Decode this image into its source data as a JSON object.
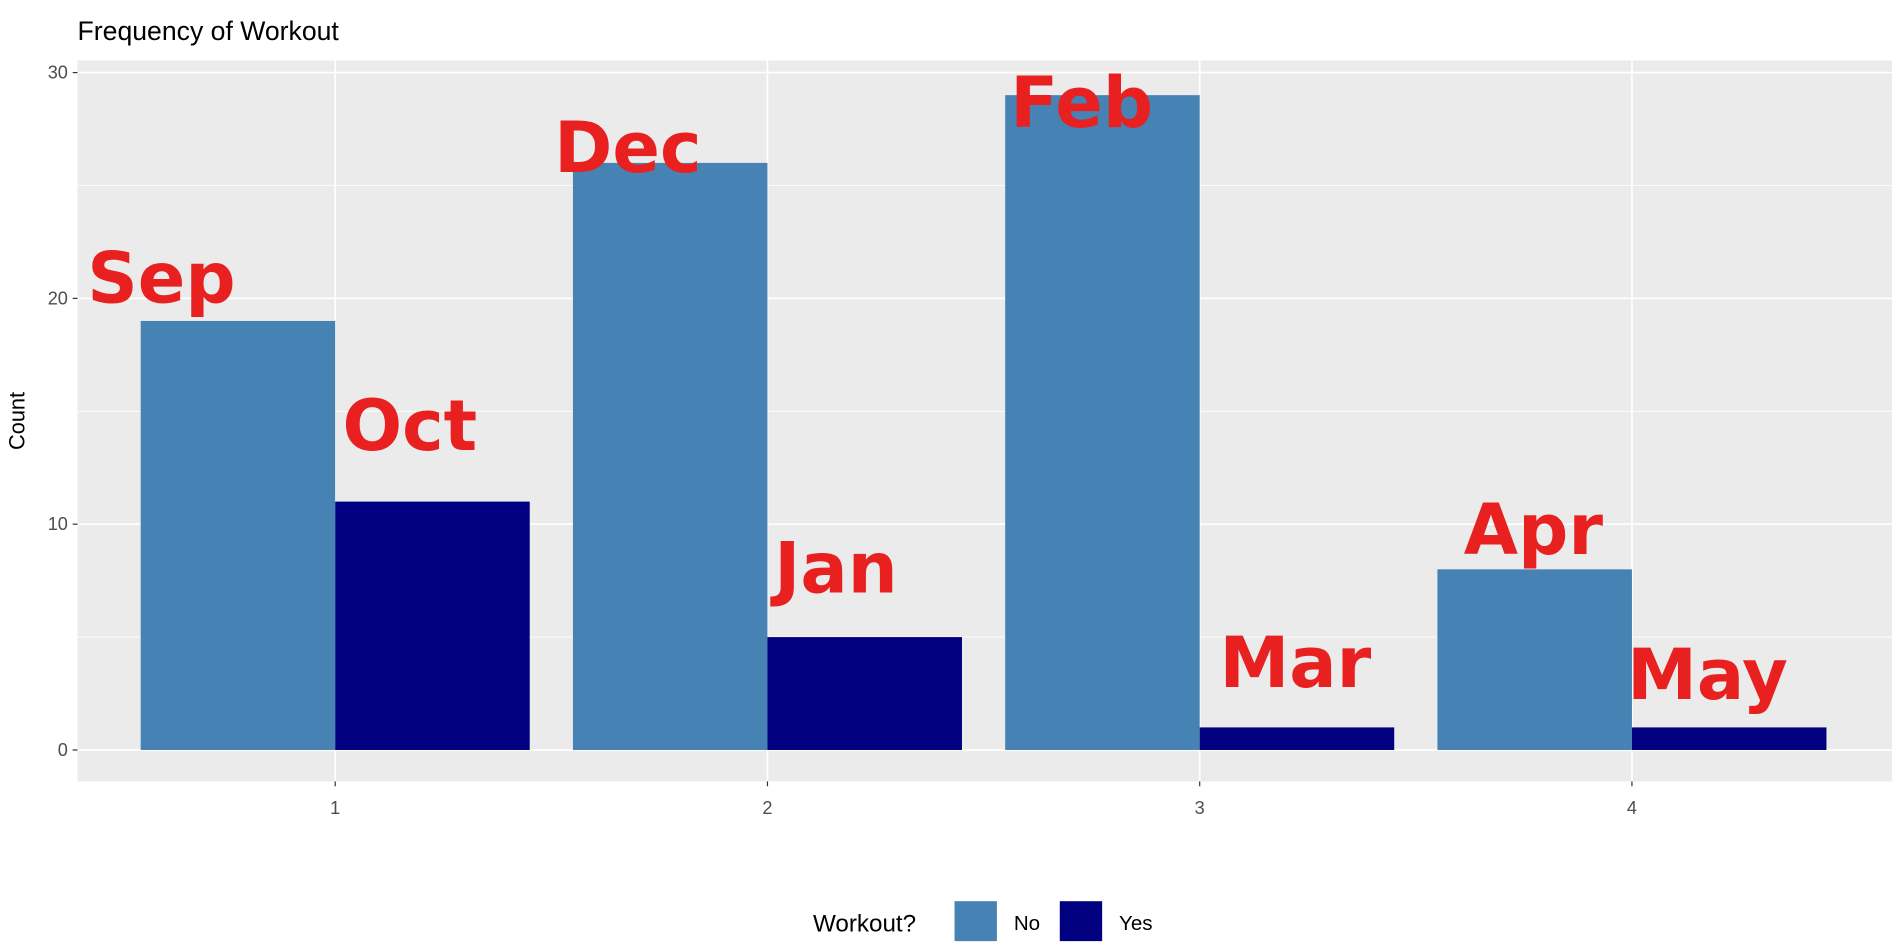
{
  "chart_data": {
    "type": "bar",
    "title": "Frequency of Workout",
    "xlabel": "",
    "ylabel": "Count",
    "categories": [
      "1",
      "2",
      "3",
      "4"
    ],
    "series": [
      {
        "name": "No",
        "values": [
          19,
          26,
          29,
          8
        ],
        "color": "#4682b4"
      },
      {
        "name": "Yes",
        "values": [
          11,
          5,
          1,
          1
        ],
        "color": "#000080"
      }
    ],
    "ylim": [
      0,
      30
    ],
    "yticks": [
      "0",
      "10",
      "20",
      "30"
    ],
    "grid": true,
    "panel_background": "#ebebeb",
    "legend": {
      "title": "Workout?",
      "placement": "bottom"
    },
    "annotations": {
      "color": "#e8201f",
      "labels": [
        "Sep",
        "Oct",
        "Dec",
        "Jan",
        "Feb",
        "Mar",
        "Apr",
        "May"
      ]
    }
  }
}
